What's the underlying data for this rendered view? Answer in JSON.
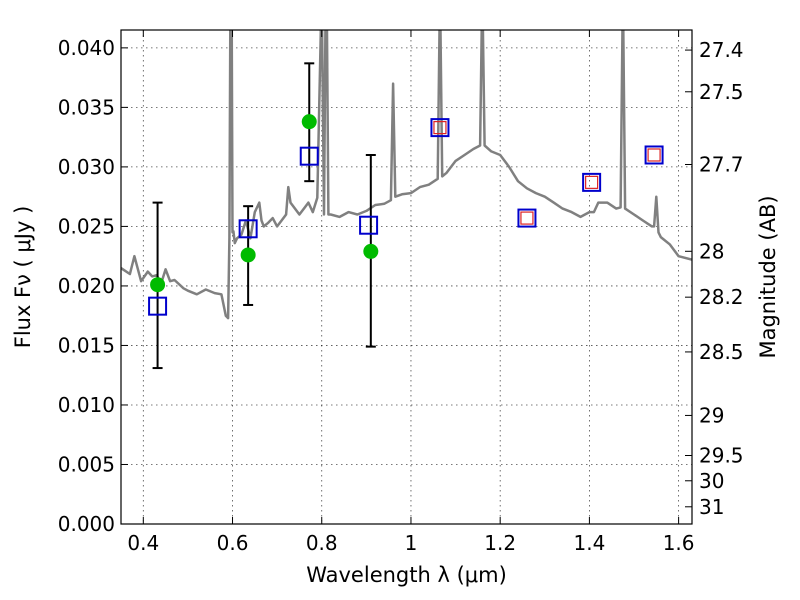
{
  "chart_data": {
    "type": "line",
    "xlabel": "Wavelength  λ (μm)",
    "ylabel": "Flux  Fν  ( μJy )",
    "ylabel_right": "Magnitude (AB)",
    "xlim": [
      0.35,
      1.63
    ],
    "ylim": [
      0.0,
      0.0415
    ],
    "x_ticks": [
      0.4,
      0.6,
      0.8,
      1.0,
      1.2,
      1.4,
      1.6
    ],
    "x_tick_labels": [
      "0.4",
      "0.6",
      "0.8",
      "1",
      "1.2",
      "1.4",
      "1.6"
    ],
    "y_ticks": [
      0.0,
      0.005,
      0.01,
      0.015,
      0.02,
      0.025,
      0.03,
      0.035,
      0.04
    ],
    "y_tick_labels": [
      "0.000",
      "0.005",
      "0.010",
      "0.015",
      "0.020",
      "0.025",
      "0.030",
      "0.035",
      "0.040"
    ],
    "magnitude_ticks": [
      "27.4",
      "27.5",
      "27.7",
      "28",
      "28.2",
      "28.5",
      "29",
      "29.5",
      "30",
      "31"
    ],
    "grid": true,
    "colors": {
      "sed": "#808080",
      "observed": "#00bb00",
      "model": "#0000cc",
      "model_inner": "#dd2222",
      "errorbar": "#000000"
    },
    "series": [
      {
        "type": "line",
        "x": [
          0.35,
          0.37,
          0.38,
          0.395,
          0.41,
          0.42,
          0.43,
          0.44,
          0.45,
          0.46,
          0.47,
          0.49,
          0.5,
          0.52,
          0.54,
          0.56,
          0.575,
          0.585,
          0.59,
          0.593,
          0.596,
          0.598,
          0.6,
          0.602,
          0.605,
          0.61,
          0.62,
          0.63,
          0.64,
          0.65,
          0.66,
          0.665,
          0.67,
          0.68,
          0.69,
          0.7,
          0.71,
          0.72,
          0.725,
          0.73,
          0.74,
          0.75,
          0.76,
          0.77,
          0.78,
          0.79,
          0.8,
          0.805,
          0.81,
          0.815,
          0.82,
          0.84,
          0.86,
          0.88,
          0.9,
          0.92,
          0.94,
          0.955,
          0.96,
          0.965,
          0.98,
          1.0,
          1.02,
          1.04,
          1.06,
          1.065,
          1.07,
          1.08,
          1.1,
          1.12,
          1.14,
          1.155,
          1.16,
          1.165,
          1.18,
          1.2,
          1.22,
          1.24,
          1.26,
          1.28,
          1.3,
          1.32,
          1.34,
          1.36,
          1.38,
          1.4,
          1.41,
          1.42,
          1.44,
          1.46,
          1.47,
          1.475,
          1.48,
          1.5,
          1.52,
          1.54,
          1.545,
          1.55,
          1.555,
          1.56,
          1.58,
          1.6,
          1.63
        ],
        "y": [
          0.0215,
          0.021,
          0.0225,
          0.0204,
          0.0212,
          0.0208,
          0.0209,
          0.0202,
          0.0214,
          0.0204,
          0.0205,
          0.0198,
          0.0196,
          0.0193,
          0.0197,
          0.0194,
          0.0193,
          0.0175,
          0.0173,
          0.024,
          0.05,
          0.045,
          0.0245,
          0.0246,
          0.0236,
          0.024,
          0.0243,
          0.0255,
          0.024,
          0.0262,
          0.027,
          0.0255,
          0.025,
          0.0253,
          0.0257,
          0.025,
          0.0255,
          0.026,
          0.0283,
          0.027,
          0.0265,
          0.026,
          0.0265,
          0.027,
          0.0262,
          0.0274,
          0.045,
          0.026,
          0.05,
          0.026,
          0.026,
          0.0258,
          0.0262,
          0.026,
          0.0263,
          0.0268,
          0.0269,
          0.0272,
          0.037,
          0.0275,
          0.0277,
          0.0278,
          0.0283,
          0.0285,
          0.029,
          0.045,
          0.0292,
          0.0295,
          0.0305,
          0.031,
          0.0315,
          0.0318,
          0.045,
          0.0318,
          0.0313,
          0.031,
          0.03,
          0.0288,
          0.0282,
          0.0278,
          0.0275,
          0.027,
          0.0265,
          0.0262,
          0.0258,
          0.0262,
          0.0262,
          0.027,
          0.027,
          0.0265,
          0.0266,
          0.045,
          0.0265,
          0.026,
          0.0255,
          0.025,
          0.025,
          0.0275,
          0.0245,
          0.0241,
          0.0235,
          0.0225,
          0.0222
        ]
      },
      {
        "type": "scatter",
        "x": [
          0.432,
          0.635,
          0.772,
          0.91
        ],
        "y": [
          0.0201,
          0.0226,
          0.0338,
          0.0229
        ],
        "yerr_low": [
          0.0131,
          0.0184,
          0.0288,
          0.0149
        ],
        "yerr_high": [
          0.027,
          0.0267,
          0.0387,
          0.031
        ]
      },
      {
        "type": "scatter",
        "x": [
          0.432,
          0.635,
          0.772,
          0.905,
          1.065,
          1.26,
          1.405,
          1.545
        ],
        "y": [
          0.0183,
          0.0248,
          0.0309,
          0.0251,
          0.0333,
          0.0257,
          0.0287,
          0.031
        ],
        "inner": [
          false,
          false,
          false,
          false,
          true,
          true,
          true,
          true
        ]
      }
    ]
  }
}
